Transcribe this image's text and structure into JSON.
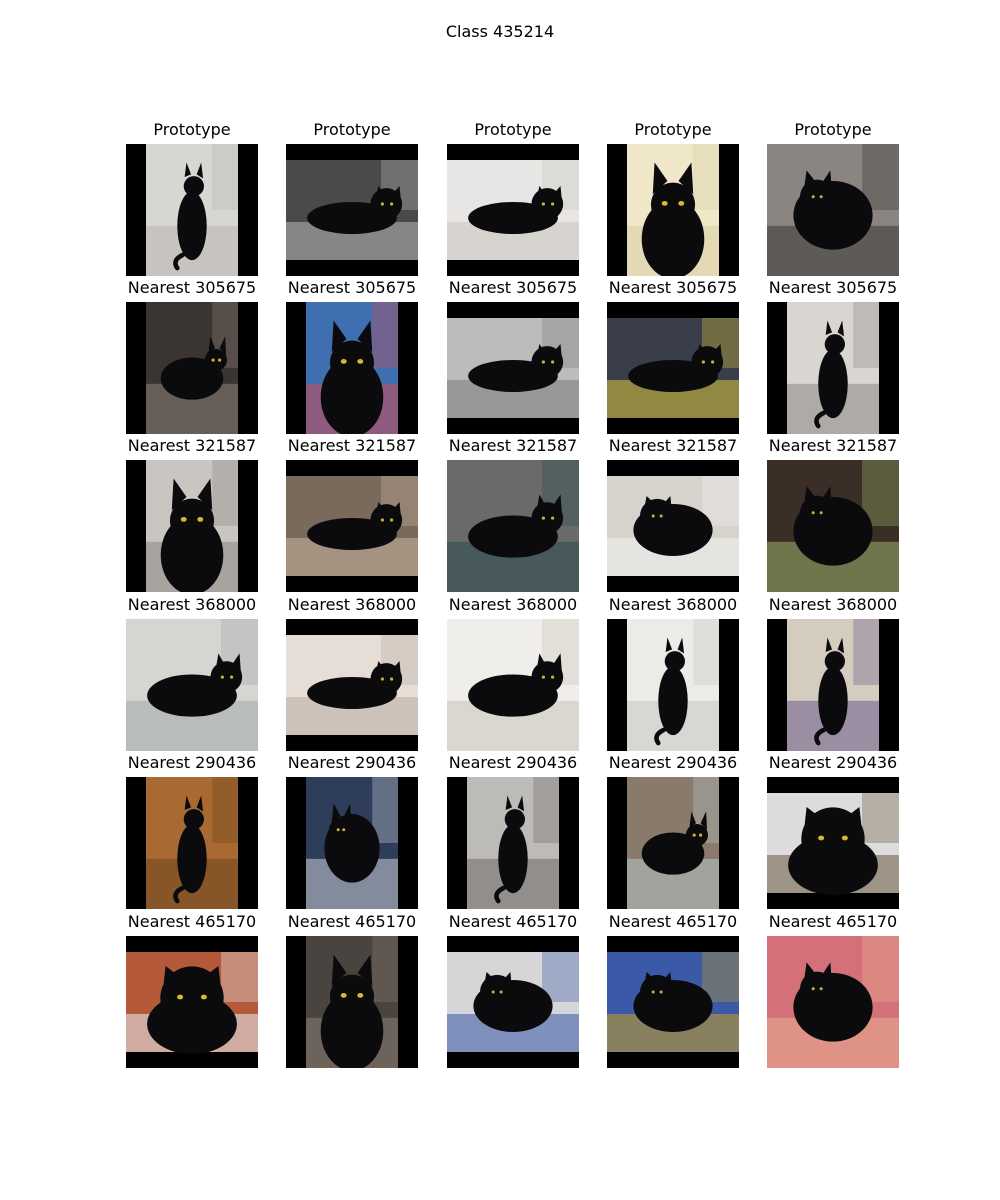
{
  "title": "Class 435214",
  "rows": [
    {
      "label": "Prototype"
    },
    {
      "label": "Nearest 305675"
    },
    {
      "label": "Nearest 321587"
    },
    {
      "label": "Nearest 368000"
    },
    {
      "label": "Nearest 290436"
    },
    {
      "label": "Nearest 465170"
    }
  ],
  "columns": 5,
  "tiles": [
    [
      {
        "pad": "lr",
        "bg": "#d8d6d2",
        "accent": "#b9b6b0",
        "cat": "sitting"
      },
      {
        "pad": "tb",
        "bg": "#4a4a4a",
        "accent": "#b8b8b8",
        "cat": "lying"
      },
      {
        "pad": "tb",
        "bg": "#e8e6e4",
        "accent": "#c9c5c0",
        "cat": "lying"
      },
      {
        "pad": "lr",
        "bg": "#efe7c8",
        "accent": "#d9cfa6",
        "cat": "face"
      },
      {
        "pad": "none",
        "bg": "#8a8580",
        "accent": "#3a3634",
        "cat": "curled"
      }
    ],
    [
      {
        "pad": "lr",
        "bg": "#3b3532",
        "accent": "#8c7f76",
        "cat": "lying"
      },
      {
        "pad": "lr",
        "bg": "#3f6fb0",
        "accent": "#d04a55",
        "cat": "face"
      },
      {
        "pad": "tb",
        "bg": "#bcbcbc",
        "accent": "#7a7a7a",
        "cat": "lying"
      },
      {
        "pad": "tb",
        "bg": "#3a3e4a",
        "accent": "#d9c43a",
        "cat": "lying"
      },
      {
        "pad": "lr",
        "bg": "#d9d6d2",
        "accent": "#8c8680",
        "cat": "sitting"
      }
    ],
    [
      {
        "pad": "lr",
        "bg": "#c9c6c2",
        "accent": "#8a8784",
        "cat": "face"
      },
      {
        "pad": "tb",
        "bg": "#7a6a5c",
        "accent": "#c9b4a0",
        "cat": "lying"
      },
      {
        "pad": "none",
        "bg": "#6a6a6a",
        "accent": "#2c4a4e",
        "cat": "lying"
      },
      {
        "pad": "tb",
        "bg": "#d6d2cc",
        "accent": "#f2f2f2",
        "cat": "curled"
      },
      {
        "pad": "none",
        "bg": "#3a2e26",
        "accent": "#9cb06a",
        "cat": "curled"
      }
    ],
    [
      {
        "pad": "none",
        "bg": "#d7d5d1",
        "accent": "#a0a7ad",
        "cat": "lying"
      },
      {
        "pad": "tb",
        "bg": "#e6ddd6",
        "accent": "#b8aca4",
        "cat": "lying"
      },
      {
        "pad": "none",
        "bg": "#efeeea",
        "accent": "#c9c4b8",
        "cat": "lying"
      },
      {
        "pad": "lr",
        "bg": "#ecebe8",
        "accent": "#c8c6c2",
        "cat": "sitting"
      },
      {
        "pad": "lr",
        "bg": "#d4cdbf",
        "accent": "#6b5a8a",
        "cat": "sitting"
      }
    ],
    [
      {
        "pad": "lr",
        "bg": "#a86a32",
        "accent": "#6a4420",
        "cat": "sitting"
      },
      {
        "pad": "lr",
        "bg": "#2e3e5a",
        "accent": "#c8ccd6",
        "cat": "curled"
      },
      {
        "pad": "lr",
        "bg": "#bdbbb8",
        "accent": "#6e6a66",
        "cat": "sitting"
      },
      {
        "pad": "lr",
        "bg": "#8a7a6c",
        "accent": "#b4c6c8",
        "cat": "lying"
      },
      {
        "pad": "tb",
        "bg": "#dcdcdc",
        "accent": "#6b5a40",
        "cat": "face"
      }
    ],
    [
      {
        "pad": "tb",
        "bg": "#b45a3a",
        "accent": "#e8eef6",
        "cat": "face"
      },
      {
        "pad": "lr",
        "bg": "#4a4440",
        "accent": "#8a7e70",
        "cat": "face"
      },
      {
        "pad": "tb",
        "bg": "#d6d6d8",
        "accent": "#3a58a8",
        "cat": "curled"
      },
      {
        "pad": "tb",
        "bg": "#3a5aa8",
        "accent": "#c8a020",
        "cat": "curled"
      },
      {
        "pad": "none",
        "bg": "#d4707a",
        "accent": "#e6b090",
        "cat": "curled"
      }
    ]
  ]
}
